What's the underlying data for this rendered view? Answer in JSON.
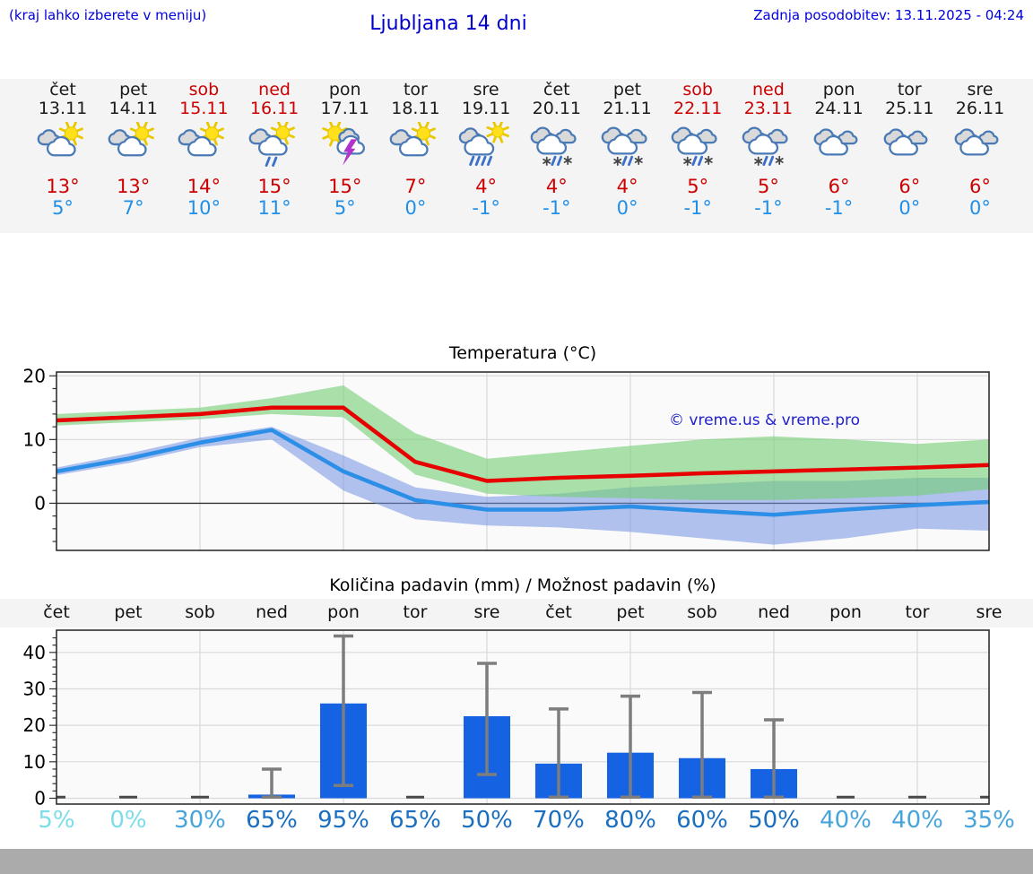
{
  "header": {
    "hint": "(kraj lahko izberete v meniju)",
    "title": "Ljubljana 14 dni",
    "updated": "Zadnja posodobitev: 13.11.2025 - 04:24"
  },
  "colors": {
    "header_blue": "#0000dd",
    "weekend_red": "#cc0000",
    "tmax_red": "#cc0000",
    "tmin_blue": "#1f8fe8",
    "bar_blue": "#1563e3",
    "line_red": "#e60000",
    "line_blue": "#2b8fe8",
    "band_green": "rgba(115,205,115,0.6)",
    "band_blue": "rgba(115,145,225,0.55)",
    "whisker_gray": "#7d7d7d"
  },
  "days": [
    {
      "name": "čet",
      "date": "13.11",
      "weekend": false,
      "icon": "sun-cloud",
      "tmax": "13°",
      "tmin": "5°",
      "prob": "5%",
      "prob_color": "#7bdde9"
    },
    {
      "name": "pet",
      "date": "14.11",
      "weekend": false,
      "icon": "sun-cloud",
      "tmax": "13°",
      "tmin": "7°",
      "prob": "0%",
      "prob_color": "#7bdde9"
    },
    {
      "name": "sob",
      "date": "15.11",
      "weekend": true,
      "icon": "sun-cloud",
      "tmax": "14°",
      "tmin": "10°",
      "prob": "30%",
      "prob_color": "#46a4da"
    },
    {
      "name": "ned",
      "date": "16.11",
      "weekend": true,
      "icon": "sun-cloud-rain",
      "tmax": "15°",
      "tmin": "11°",
      "prob": "65%",
      "prob_color": "#1b6fc0"
    },
    {
      "name": "pon",
      "date": "17.11",
      "weekend": false,
      "icon": "sun-cloud-thunder",
      "tmax": "15°",
      "tmin": "5°",
      "prob": "95%",
      "prob_color": "#1b6fc0"
    },
    {
      "name": "tor",
      "date": "18.11",
      "weekend": false,
      "icon": "sun-cloud",
      "tmax": "7°",
      "tmin": "0°",
      "prob": "65%",
      "prob_color": "#1b6fc0"
    },
    {
      "name": "sre",
      "date": "19.11",
      "weekend": false,
      "icon": "sun-cloud-heavyrain",
      "tmax": "4°",
      "tmin": "-1°",
      "prob": "50%",
      "prob_color": "#1b6fc0"
    },
    {
      "name": "čet",
      "date": "20.11",
      "weekend": false,
      "icon": "clouds-sleet",
      "tmax": "4°",
      "tmin": "-1°",
      "prob": "70%",
      "prob_color": "#1b6fc0"
    },
    {
      "name": "pet",
      "date": "21.11",
      "weekend": false,
      "icon": "clouds-sleet",
      "tmax": "4°",
      "tmin": "0°",
      "prob": "80%",
      "prob_color": "#1b6fc0"
    },
    {
      "name": "sob",
      "date": "22.11",
      "weekend": true,
      "icon": "clouds-sleet",
      "tmax": "5°",
      "tmin": "-1°",
      "prob": "60%",
      "prob_color": "#1b6fc0"
    },
    {
      "name": "ned",
      "date": "23.11",
      "weekend": true,
      "icon": "clouds-sleet",
      "tmax": "5°",
      "tmin": "-1°",
      "prob": "50%",
      "prob_color": "#1b6fc0"
    },
    {
      "name": "pon",
      "date": "24.11",
      "weekend": false,
      "icon": "clouds",
      "tmax": "6°",
      "tmin": "-1°",
      "prob": "40%",
      "prob_color": "#46a4da"
    },
    {
      "name": "tor",
      "date": "25.11",
      "weekend": false,
      "icon": "clouds",
      "tmax": "6°",
      "tmin": "0°",
      "prob": "40%",
      "prob_color": "#46a4da"
    },
    {
      "name": "sre",
      "date": "26.11",
      "weekend": false,
      "icon": "clouds",
      "tmax": "6°",
      "tmin": "0°",
      "prob": "35%",
      "prob_color": "#46a4da"
    }
  ],
  "chart_data": [
    {
      "type": "line",
      "title": "Temperatura (°C)",
      "watermark": "© vreme.us & vreme.pro",
      "categories": [
        "čet",
        "pet",
        "sob",
        "ned",
        "pon",
        "tor",
        "sre",
        "čet",
        "pet",
        "sob",
        "ned",
        "pon",
        "tor",
        "sre"
      ],
      "yticks": [
        0,
        10,
        20
      ],
      "ylim": [
        -7.4,
        20.6
      ],
      "grid": "on",
      "series": [
        {
          "name": "max-temp",
          "color": "#e60000",
          "values": [
            13,
            13.5,
            14,
            15,
            15,
            6.5,
            3.5,
            4,
            4.3,
            4.7,
            5,
            5.3,
            5.6,
            6
          ]
        },
        {
          "name": "max-temp-range-high",
          "values": [
            14,
            14.5,
            15,
            16.5,
            18.5,
            11,
            7,
            8,
            9,
            10,
            10.5,
            10,
            9.3,
            10
          ]
        },
        {
          "name": "max-temp-range-low",
          "values": [
            12.2,
            12.7,
            13.2,
            14,
            13.5,
            4.5,
            1.5,
            1,
            0.8,
            0.5,
            0.5,
            0.8,
            1.2,
            2.2
          ]
        },
        {
          "name": "min-temp",
          "color": "#2b8fe8",
          "values": [
            5,
            7,
            9.5,
            11.5,
            5,
            0.5,
            -1,
            -1,
            -0.5,
            -1.2,
            -1.8,
            -1,
            -0.3,
            0.2
          ]
        },
        {
          "name": "min-temp-range-high",
          "values": [
            5.6,
            7.8,
            10.3,
            12,
            7.5,
            2.5,
            1,
            1.5,
            2.5,
            3,
            3.5,
            3.5,
            4,
            4
          ]
        },
        {
          "name": "min-temp-range-low",
          "values": [
            4.4,
            6.3,
            8.8,
            10,
            2,
            -2.5,
            -3.5,
            -3.8,
            -4.5,
            -5.5,
            -6.5,
            -5.5,
            -4,
            -4.3
          ]
        }
      ]
    },
    {
      "type": "bar",
      "title": "Količina padavin (mm) / Možnost padavin (%)",
      "categories": [
        "čet",
        "pet",
        "sob",
        "ned",
        "pon",
        "tor",
        "sre",
        "čet",
        "pet",
        "sob",
        "ned",
        "pon",
        "tor",
        "sre"
      ],
      "yticks": [
        0,
        10,
        20,
        30,
        40
      ],
      "ylim": [
        -1.6,
        46.1
      ],
      "grid": "on",
      "values": [
        0,
        0,
        0,
        1,
        26,
        0,
        22.5,
        9.5,
        12.5,
        11,
        8,
        0,
        0,
        0
      ],
      "whisker_low": [
        0.3,
        0.3,
        0.3,
        0.3,
        3.5,
        0.3,
        6.5,
        0.3,
        0.3,
        0.3,
        0.3,
        0.3,
        0.3,
        0.3
      ],
      "whisker_high": [
        0.3,
        0.3,
        0.3,
        8,
        44.5,
        0.3,
        37,
        24.5,
        28,
        29,
        21.5,
        0.3,
        0.3,
        0.3
      ],
      "probabilities_pct": [
        5,
        0,
        30,
        65,
        95,
        65,
        50,
        70,
        80,
        60,
        50,
        40,
        40,
        35
      ]
    }
  ]
}
